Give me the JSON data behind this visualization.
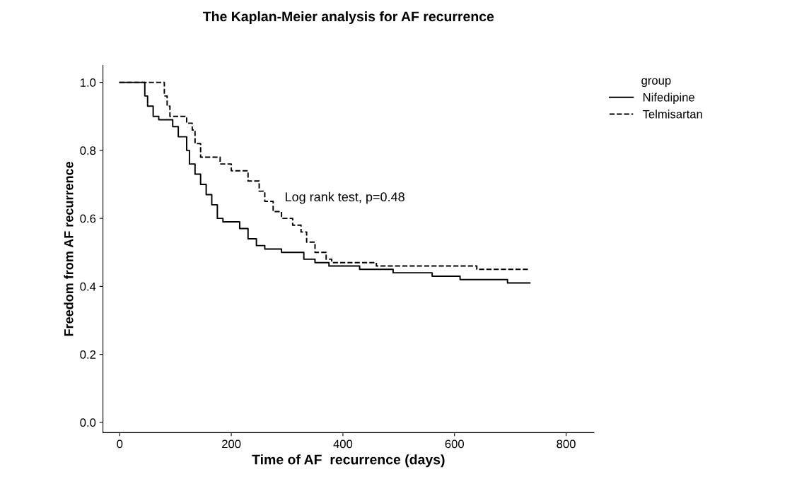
{
  "chart_data": {
    "type": "step",
    "title": "The Kaplan-Meier analysis for AF recurrence",
    "xlabel": "Time of AF  recurrence (days)",
    "ylabel": "Freedom from AF recurrence",
    "legend_title": "group",
    "legend": "right",
    "grid": false,
    "xlim": [
      -30,
      850
    ],
    "ylim": [
      -0.03,
      1.05
    ],
    "xticks": [
      0,
      200,
      400,
      600,
      800
    ],
    "yticks": [
      {
        "value": 0,
        "label": "0.0"
      },
      0.2,
      0.4,
      0.6,
      0.8,
      {
        "value": 1,
        "label": "1.0"
      }
    ],
    "annotations": [
      "Log rank test, p=0.48"
    ],
    "series": [
      {
        "name": "Nifedipine",
        "color": "#000000",
        "line_style": "solid",
        "x": [
          0,
          45,
          50,
          60,
          70,
          95,
          105,
          120,
          125,
          135,
          145,
          155,
          165,
          175,
          185,
          215,
          230,
          245,
          260,
          290,
          330,
          350,
          375,
          430,
          490,
          560,
          610,
          695,
          735
        ],
        "values": [
          1.0,
          0.96,
          0.93,
          0.9,
          0.89,
          0.87,
          0.84,
          0.8,
          0.76,
          0.73,
          0.7,
          0.67,
          0.64,
          0.6,
          0.59,
          0.57,
          0.54,
          0.52,
          0.51,
          0.5,
          0.48,
          0.47,
          0.46,
          0.45,
          0.44,
          0.43,
          0.42,
          0.41,
          0.41
        ]
      },
      {
        "name": "Telmisartan",
        "color": "#000000",
        "line_style": "dashed",
        "x": [
          0,
          80,
          85,
          90,
          120,
          130,
          135,
          145,
          180,
          200,
          230,
          250,
          260,
          275,
          290,
          310,
          325,
          335,
          350,
          370,
          380,
          460,
          640,
          735
        ],
        "values": [
          1.0,
          0.96,
          0.93,
          0.9,
          0.88,
          0.86,
          0.82,
          0.78,
          0.76,
          0.74,
          0.71,
          0.68,
          0.65,
          0.62,
          0.6,
          0.58,
          0.56,
          0.53,
          0.5,
          0.48,
          0.47,
          0.46,
          0.45,
          0.45
        ]
      }
    ]
  }
}
